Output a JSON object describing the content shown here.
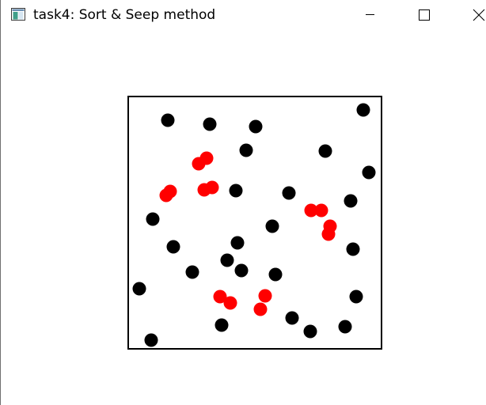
{
  "window": {
    "title": "task4: Sort & Seep method"
  },
  "icons": {
    "app": "app-window-icon",
    "minimize": "minimize-icon",
    "maximize": "maximize-icon",
    "close": "close-icon"
  },
  "colors": {
    "frame": "#000000",
    "point_default": "#000000",
    "point_highlight": "#ff0000",
    "background": "#ffffff"
  },
  "chart_data": {
    "type": "scatter",
    "series": [
      {
        "color": "#000000",
        "points": [
          [
            190,
            430
          ],
          [
            175,
            365
          ],
          [
            192,
            277
          ],
          [
            218,
            312
          ],
          [
            242,
            344
          ],
          [
            279,
            411
          ],
          [
            286,
            329
          ],
          [
            304,
            342
          ],
          [
            299,
            307
          ],
          [
            297,
            241
          ],
          [
            310,
            190
          ],
          [
            264,
            157
          ],
          [
            322,
            160
          ],
          [
            211,
            152
          ],
          [
            343,
            286
          ],
          [
            347,
            347
          ],
          [
            364,
            244
          ],
          [
            368,
            402
          ],
          [
            391,
            419
          ],
          [
            435,
            413
          ],
          [
            449,
            375
          ],
          [
            445,
            315
          ],
          [
            442,
            254
          ],
          [
            465,
            218
          ],
          [
            410,
            191
          ],
          [
            458,
            139
          ]
        ]
      },
      {
        "color": "#ff0000",
        "points": [
          [
            250,
            207
          ],
          [
            260,
            200
          ],
          [
            209,
            247
          ],
          [
            214,
            242
          ],
          [
            257,
            240
          ],
          [
            267,
            237
          ],
          [
            392,
            266
          ],
          [
            405,
            266
          ],
          [
            416,
            286
          ],
          [
            414,
            296
          ],
          [
            277,
            375
          ],
          [
            290,
            383
          ],
          [
            334,
            374
          ],
          [
            328,
            391
          ]
        ]
      }
    ]
  }
}
